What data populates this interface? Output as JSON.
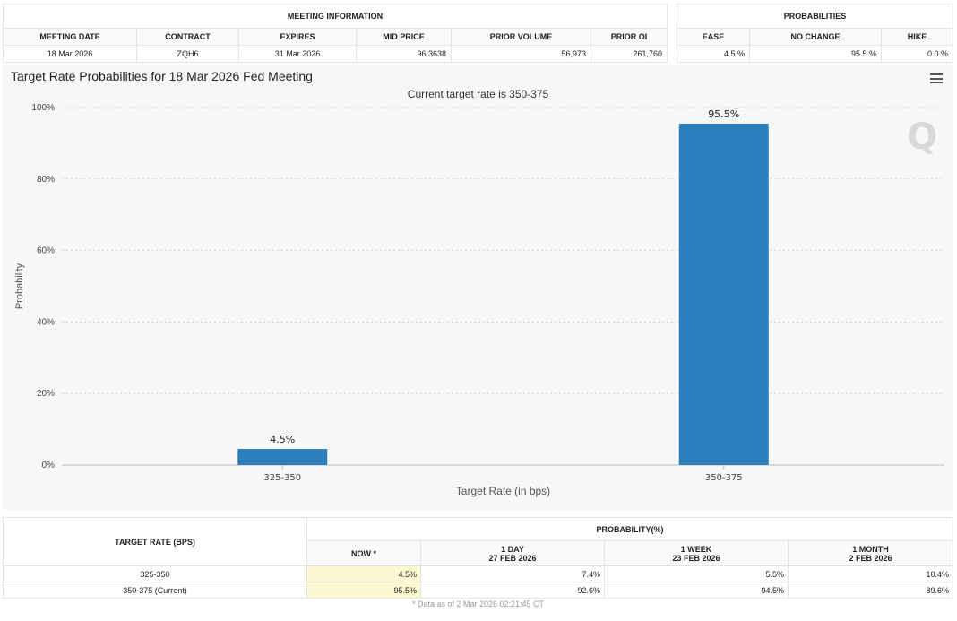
{
  "meeting_info": {
    "title": "MEETING INFORMATION",
    "headers": [
      "MEETING DATE",
      "CONTRACT",
      "EXPIRES",
      "MID PRICE",
      "PRIOR VOLUME",
      "PRIOR OI"
    ],
    "values": [
      "18 Mar 2026",
      "ZQH6",
      "31 Mar 2026",
      "96.3638",
      "56,973",
      "261,760"
    ]
  },
  "probabilities": {
    "title": "PROBABILITIES",
    "headers": [
      "EASE",
      "NO CHANGE",
      "HIKE"
    ],
    "values": [
      "4.5 %",
      "95.5 %",
      "0.0 %"
    ]
  },
  "chart_data": {
    "type": "bar",
    "title": "Target Rate Probabilities for 18 Mar 2026 Fed Meeting",
    "subtitle": "Current target rate is 350-375",
    "xlabel": "Target Rate (in bps)",
    "ylabel": "Probability",
    "categories": [
      "325-350",
      "350-375"
    ],
    "values": [
      4.5,
      95.5
    ],
    "data_labels": [
      "4.5%",
      "95.5%"
    ],
    "ylim": [
      0,
      100
    ],
    "yticks": [
      0,
      20,
      40,
      60,
      80,
      100
    ],
    "ytick_labels": [
      "0%",
      "20%",
      "40%",
      "60%",
      "80%",
      "100%"
    ],
    "bar_color": "#2b7fba",
    "grid": true
  },
  "bottom_table": {
    "col1_header": "TARGET RATE (BPS)",
    "group_header": "PROBABILITY(%)",
    "sub_headers": [
      {
        "line1": "NOW *",
        "line2": ""
      },
      {
        "line1": "1 DAY",
        "line2": "27 FEB 2026"
      },
      {
        "line1": "1 WEEK",
        "line2": "23 FEB 2026"
      },
      {
        "line1": "1 MONTH",
        "line2": "2 FEB 2026"
      }
    ],
    "rows": [
      {
        "rate": "325-350",
        "values": [
          "4.5%",
          "7.4%",
          "5.5%",
          "10.4%"
        ]
      },
      {
        "rate": "350-375 (Current)",
        "values": [
          "95.5%",
          "92.6%",
          "94.5%",
          "89.6%"
        ]
      }
    ]
  },
  "footnote": "* Data as of 2 Mar 2026 02:21:45 CT"
}
